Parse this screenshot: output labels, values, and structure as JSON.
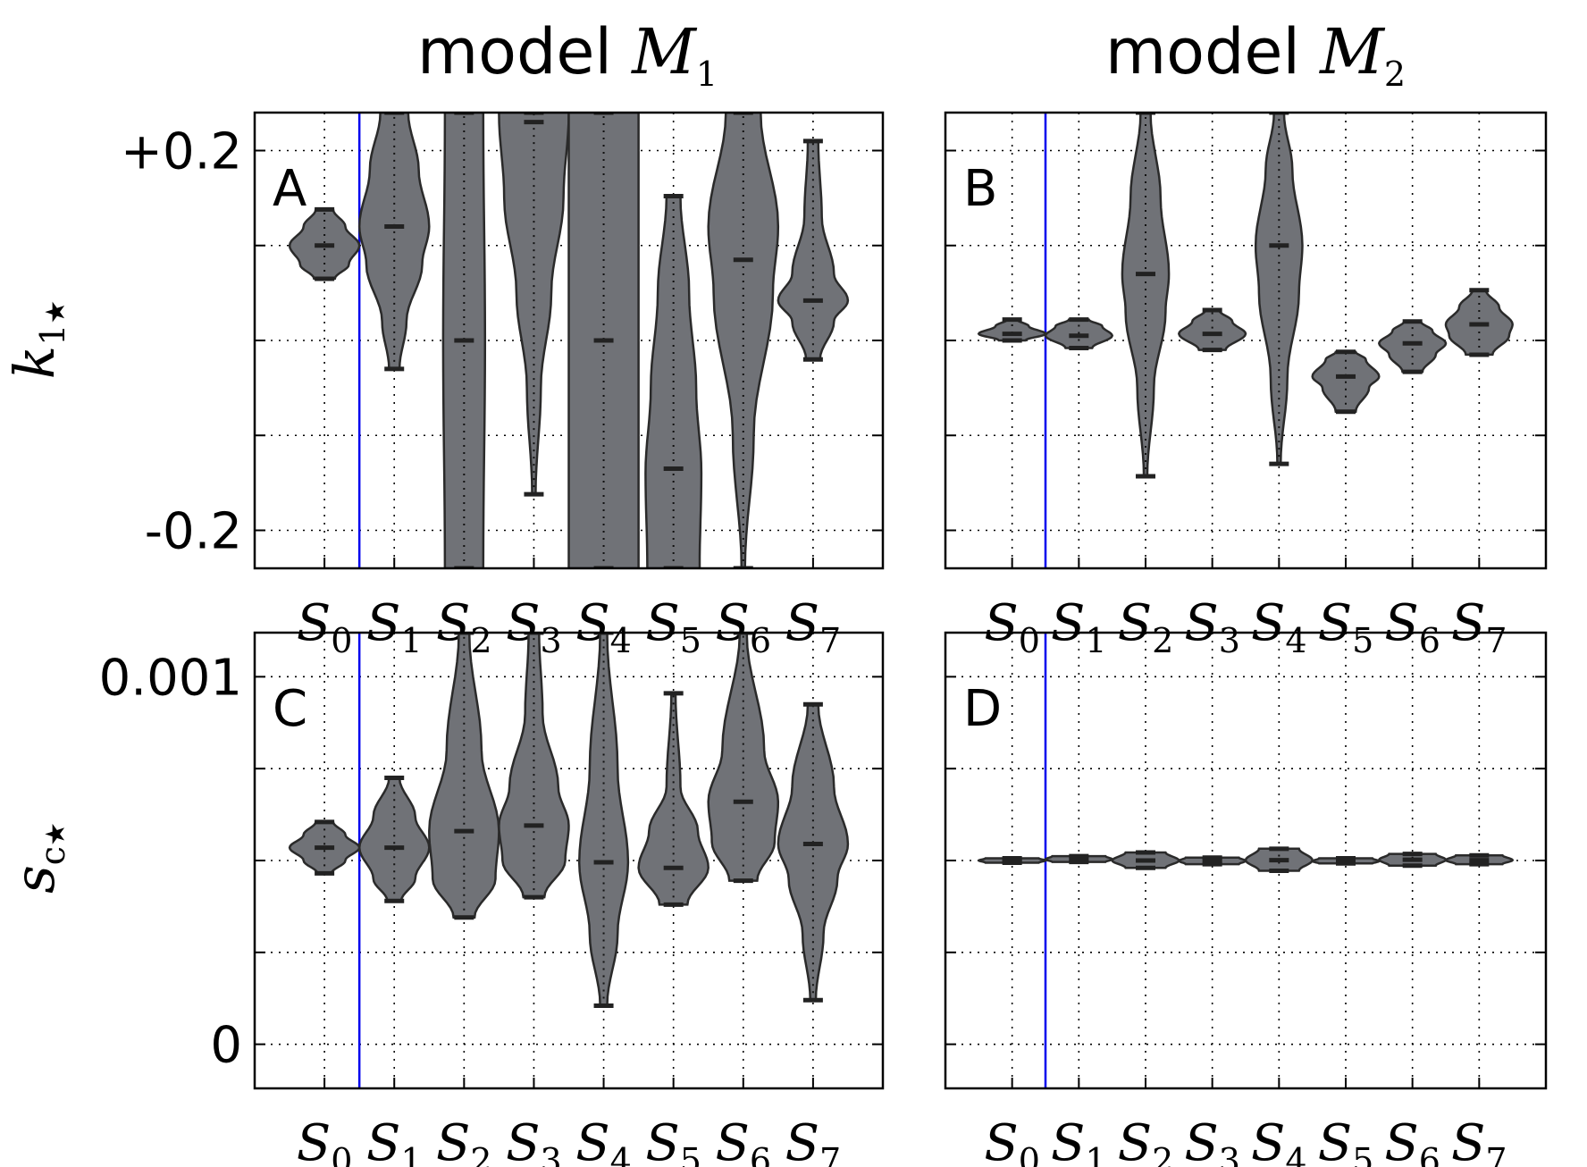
{
  "figure": {
    "column_titles": [
      {
        "text": "model",
        "math": "M",
        "sub": "1"
      },
      {
        "text": "model",
        "math": "M",
        "sub": "2"
      }
    ],
    "row_labels": [
      {
        "main": "k",
        "sub": "1",
        "star": "★"
      },
      {
        "main": "s",
        "sub": "c",
        "star": "★"
      }
    ],
    "vertical_line_color": "#0000ee",
    "violin_color": "#707277"
  },
  "chart_data": [
    {
      "type": "violin",
      "panel": "A",
      "model": "M1",
      "ylabel": "k1★",
      "ylim": [
        -0.24,
        0.24
      ],
      "yticks": [
        -0.2,
        -0.1,
        0.0,
        0.1,
        0.2
      ],
      "ytick_labels": [
        "-0.2",
        "",
        "",
        "",
        "+0.2"
      ],
      "categories": [
        {
          "base": "S",
          "sub": "0"
        },
        {
          "base": "S",
          "sub": "1"
        },
        {
          "base": "S",
          "sub": "2"
        },
        {
          "base": "S",
          "sub": "3"
        },
        {
          "base": "S",
          "sub": "4"
        },
        {
          "base": "S",
          "sub": "5"
        },
        {
          "base": "S",
          "sub": "6"
        },
        {
          "base": "S",
          "sub": "7"
        }
      ],
      "separator_after_index": 0,
      "violins": [
        {
          "min": 0.065,
          "max": 0.138,
          "median": 0.1,
          "profile": [
            [
              0.065,
              0.3
            ],
            [
              0.08,
              0.7
            ],
            [
              0.1,
              1
            ],
            [
              0.12,
              0.6
            ],
            [
              0.138,
              0.25
            ]
          ],
          "width": 0.28
        },
        {
          "min": -0.03,
          "max": 0.24,
          "median": 0.12,
          "profile": [
            [
              -0.03,
              0.15
            ],
            [
              0.02,
              0.35
            ],
            [
              0.08,
              0.8
            ],
            [
              0.12,
              1
            ],
            [
              0.18,
              0.7
            ],
            [
              0.24,
              0.4
            ]
          ],
          "width": 0.28
        },
        {
          "min": -0.24,
          "max": 0.24,
          "median": 0.0,
          "profile": [
            [
              -0.24,
              0.55
            ],
            [
              0,
              0.6
            ],
            [
              0.24,
              0.55
            ]
          ],
          "width": 0.28
        },
        {
          "min": -0.162,
          "max": 0.24,
          "median": 0.23,
          "profile": [
            [
              -0.162,
              0.05
            ],
            [
              -0.05,
              0.2
            ],
            [
              0.05,
              0.5
            ],
            [
              0.15,
              0.85
            ],
            [
              0.24,
              1
            ]
          ],
          "width": 0.28
        },
        {
          "min": -0.24,
          "max": 0.24,
          "median": 0.0,
          "profile": [
            [
              -0.24,
              1
            ],
            [
              0,
              1
            ],
            [
              0.24,
              1
            ]
          ],
          "width": 0.28
        },
        {
          "min": -0.24,
          "max": 0.152,
          "median": -0.135,
          "profile": [
            [
              -0.24,
              0.75
            ],
            [
              -0.14,
              0.8
            ],
            [
              -0.05,
              0.65
            ],
            [
              0.05,
              0.45
            ],
            [
              0.152,
              0.2
            ]
          ],
          "width": 0.28
        },
        {
          "min": -0.24,
          "max": 0.24,
          "median": 0.085,
          "profile": [
            [
              -0.24,
              0.05
            ],
            [
              -0.1,
              0.3
            ],
            [
              0.05,
              0.85
            ],
            [
              0.12,
              1
            ],
            [
              0.24,
              0.5
            ]
          ],
          "width": 0.28
        },
        {
          "min": -0.02,
          "max": 0.21,
          "median": 0.042,
          "profile": [
            [
              -0.02,
              0.2
            ],
            [
              0.02,
              0.6
            ],
            [
              0.042,
              1
            ],
            [
              0.07,
              0.6
            ],
            [
              0.13,
              0.25
            ],
            [
              0.21,
              0.15
            ]
          ],
          "width": 0.28
        }
      ]
    },
    {
      "type": "violin",
      "panel": "B",
      "model": "M2",
      "ylim": [
        -0.24,
        0.24
      ],
      "yticks": [
        -0.2,
        -0.1,
        0.0,
        0.1,
        0.2
      ],
      "categories": [
        {
          "base": "S",
          "sub": "0"
        },
        {
          "base": "S",
          "sub": "1"
        },
        {
          "base": "S",
          "sub": "2"
        },
        {
          "base": "S",
          "sub": "3"
        },
        {
          "base": "S",
          "sub": "4"
        },
        {
          "base": "S",
          "sub": "5"
        },
        {
          "base": "S",
          "sub": "6"
        },
        {
          "base": "S",
          "sub": "7"
        }
      ],
      "separator_after_index": 0,
      "violins": [
        {
          "min": 0.0,
          "max": 0.022,
          "median": 0.007,
          "profile": [
            [
              0.0,
              0.4
            ],
            [
              0.007,
              1
            ],
            [
              0.015,
              0.5
            ],
            [
              0.022,
              0.15
            ]
          ],
          "width": 0.28
        },
        {
          "min": -0.008,
          "max": 0.022,
          "median": 0.005,
          "profile": [
            [
              -0.008,
              0.4
            ],
            [
              0.005,
              1
            ],
            [
              0.015,
              0.7
            ],
            [
              0.022,
              0.3
            ]
          ],
          "width": 0.28
        },
        {
          "min": -0.143,
          "max": 0.24,
          "median": 0.07,
          "profile": [
            [
              -0.143,
              0.05
            ],
            [
              -0.05,
              0.25
            ],
            [
              0.03,
              0.6
            ],
            [
              0.07,
              0.7
            ],
            [
              0.15,
              0.45
            ],
            [
              0.24,
              0.15
            ]
          ],
          "width": 0.28
        },
        {
          "min": -0.01,
          "max": 0.032,
          "median": 0.007,
          "profile": [
            [
              -0.01,
              0.4
            ],
            [
              0.007,
              1
            ],
            [
              0.02,
              0.6
            ],
            [
              0.032,
              0.2
            ]
          ],
          "width": 0.28
        },
        {
          "min": -0.13,
          "max": 0.24,
          "median": 0.1,
          "profile": [
            [
              -0.13,
              0.05
            ],
            [
              -0.04,
              0.25
            ],
            [
              0.05,
              0.6
            ],
            [
              0.1,
              0.7
            ],
            [
              0.18,
              0.4
            ],
            [
              0.24,
              0.15
            ]
          ],
          "width": 0.28
        },
        {
          "min": -0.075,
          "max": -0.012,
          "median": -0.038,
          "profile": [
            [
              -0.075,
              0.3
            ],
            [
              -0.05,
              0.7
            ],
            [
              -0.038,
              1
            ],
            [
              -0.02,
              0.6
            ],
            [
              -0.012,
              0.3
            ]
          ],
          "width": 0.28
        },
        {
          "min": -0.033,
          "max": 0.02,
          "median": -0.003,
          "profile": [
            [
              -0.033,
              0.3
            ],
            [
              -0.015,
              0.7
            ],
            [
              -0.003,
              1
            ],
            [
              0.01,
              0.6
            ],
            [
              0.02,
              0.25
            ]
          ],
          "width": 0.28
        },
        {
          "min": -0.015,
          "max": 0.053,
          "median": 0.017,
          "profile": [
            [
              -0.015,
              0.4
            ],
            [
              0.005,
              0.9
            ],
            [
              0.017,
              1
            ],
            [
              0.035,
              0.6
            ],
            [
              0.053,
              0.2
            ]
          ],
          "width": 0.28
        }
      ]
    },
    {
      "type": "violin",
      "panel": "C",
      "model": "M1",
      "ylabel": "sc★",
      "ylim": [
        -0.00012,
        0.00112
      ],
      "yticks": [
        0,
        0.00025,
        0.0005,
        0.00075,
        0.001
      ],
      "ytick_labels": [
        "0",
        "",
        "",
        "",
        "0.001"
      ],
      "categories": [
        {
          "base": "S",
          "sub": "0"
        },
        {
          "base": "S",
          "sub": "1"
        },
        {
          "base": "S",
          "sub": "2"
        },
        {
          "base": "S",
          "sub": "3"
        },
        {
          "base": "S",
          "sub": "4"
        },
        {
          "base": "S",
          "sub": "5"
        },
        {
          "base": "S",
          "sub": "6"
        },
        {
          "base": "S",
          "sub": "7"
        }
      ],
      "separator_after_index": 0,
      "violins": [
        {
          "min": 0.000465,
          "max": 0.000605,
          "median": 0.000535,
          "profile": [
            [
              0.000465,
              0.2
            ],
            [
              0.0005,
              0.6
            ],
            [
              0.000535,
              1
            ],
            [
              0.00057,
              0.6
            ],
            [
              0.000605,
              0.25
            ]
          ],
          "width": 0.28
        },
        {
          "min": 0.00039,
          "max": 0.000725,
          "median": 0.000535,
          "profile": [
            [
              0.00039,
              0.2
            ],
            [
              0.00045,
              0.6
            ],
            [
              0.000535,
              1
            ],
            [
              0.00062,
              0.6
            ],
            [
              0.000725,
              0.15
            ]
          ],
          "width": 0.28
        },
        {
          "min": 0.000345,
          "max": 0.00112,
          "median": 0.00058,
          "profile": [
            [
              0.000345,
              0.3
            ],
            [
              0.00045,
              0.9
            ],
            [
              0.00058,
              1
            ],
            [
              0.0008,
              0.5
            ],
            [
              0.00112,
              0.15
            ]
          ],
          "width": 0.28
        },
        {
          "min": 0.0004,
          "max": 0.00112,
          "median": 0.000595,
          "profile": [
            [
              0.0004,
              0.3
            ],
            [
              0.0005,
              0.9
            ],
            [
              0.000595,
              1
            ],
            [
              0.0007,
              0.7
            ],
            [
              0.0009,
              0.25
            ],
            [
              0.00112,
              0.15
            ]
          ],
          "width": 0.28
        },
        {
          "min": 0.000105,
          "max": 0.00112,
          "median": 0.000495,
          "profile": [
            [
              0.000105,
              0.1
            ],
            [
              0.0003,
              0.4
            ],
            [
              0.000495,
              0.7
            ],
            [
              0.00075,
              0.4
            ],
            [
              0.00112,
              0.1
            ]
          ],
          "width": 0.28
        },
        {
          "min": 0.00038,
          "max": 0.000955,
          "median": 0.00048,
          "profile": [
            [
              0.00038,
              0.4
            ],
            [
              0.00048,
              1
            ],
            [
              0.00058,
              0.7
            ],
            [
              0.0007,
              0.2
            ],
            [
              0.000955,
              0.06
            ]
          ],
          "width": 0.28
        },
        {
          "min": 0.000445,
          "max": 0.00112,
          "median": 0.00066,
          "profile": [
            [
              0.000445,
              0.4
            ],
            [
              0.00055,
              0.9
            ],
            [
              0.00066,
              1
            ],
            [
              0.0008,
              0.6
            ],
            [
              0.00112,
              0.1
            ]
          ],
          "width": 0.28
        },
        {
          "min": 0.00012,
          "max": 0.000925,
          "median": 0.000545,
          "profile": [
            [
              0.00012,
              0.08
            ],
            [
              0.0003,
              0.3
            ],
            [
              0.00045,
              0.7
            ],
            [
              0.000545,
              1
            ],
            [
              0.0007,
              0.6
            ],
            [
              0.000925,
              0.15
            ]
          ],
          "width": 0.28
        }
      ]
    },
    {
      "type": "violin",
      "panel": "D",
      "model": "M2",
      "ylim": [
        -0.00012,
        0.00112
      ],
      "yticks": [
        0,
        0.00025,
        0.0005,
        0.00075,
        0.001
      ],
      "categories": [
        {
          "base": "S",
          "sub": "0"
        },
        {
          "base": "S",
          "sub": "1"
        },
        {
          "base": "S",
          "sub": "2"
        },
        {
          "base": "S",
          "sub": "3"
        },
        {
          "base": "S",
          "sub": "4"
        },
        {
          "base": "S",
          "sub": "5"
        },
        {
          "base": "S",
          "sub": "6"
        },
        {
          "base": "S",
          "sub": "7"
        }
      ],
      "separator_after_index": 0,
      "violins": [
        {
          "min": 0.000494,
          "max": 0.000506,
          "median": 0.0005,
          "profile": [
            [
              0.000494,
              0.8
            ],
            [
              0.0005,
              1
            ],
            [
              0.000506,
              0.8
            ]
          ],
          "width": 0.28
        },
        {
          "min": 0.000496,
          "max": 0.000512,
          "median": 0.000503,
          "profile": [
            [
              0.000496,
              0.8
            ],
            [
              0.000503,
              1
            ],
            [
              0.000512,
              0.8
            ]
          ],
          "width": 0.28
        },
        {
          "min": 0.00048,
          "max": 0.000522,
          "median": 0.0005,
          "profile": [
            [
              0.00048,
              0.6
            ],
            [
              0.0005,
              1
            ],
            [
              0.000522,
              0.6
            ]
          ],
          "width": 0.28
        },
        {
          "min": 0.00049,
          "max": 0.000508,
          "median": 0.000499,
          "profile": [
            [
              0.00049,
              0.8
            ],
            [
              0.000499,
              1
            ],
            [
              0.000508,
              0.8
            ]
          ],
          "width": 0.28
        },
        {
          "min": 0.000472,
          "max": 0.000532,
          "median": 0.000501,
          "profile": [
            [
              0.000472,
              0.6
            ],
            [
              0.000501,
              1
            ],
            [
              0.000532,
              0.6
            ]
          ],
          "width": 0.28
        },
        {
          "min": 0.000492,
          "max": 0.000506,
          "median": 0.000498,
          "profile": [
            [
              0.000492,
              0.8
            ],
            [
              0.000498,
              1
            ],
            [
              0.000506,
              0.8
            ]
          ],
          "width": 0.28
        },
        {
          "min": 0.000486,
          "max": 0.000518,
          "median": 0.000502,
          "profile": [
            [
              0.000486,
              0.7
            ],
            [
              0.000502,
              1
            ],
            [
              0.000518,
              0.7
            ]
          ],
          "width": 0.28
        },
        {
          "min": 0.00049,
          "max": 0.000514,
          "median": 0.000501,
          "profile": [
            [
              0.00049,
              0.7
            ],
            [
              0.000501,
              1
            ],
            [
              0.000514,
              0.7
            ]
          ],
          "width": 0.28
        }
      ]
    }
  ]
}
